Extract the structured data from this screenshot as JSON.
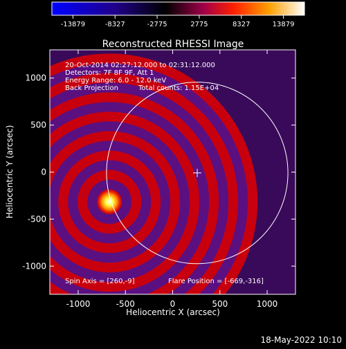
{
  "colorbar": {
    "ticks": [
      "-13879",
      "-8327",
      "-2775",
      "2775",
      "8327",
      "13879"
    ],
    "colors": [
      "#0000ff",
      "#000000",
      "#ff0000",
      "#ffff00",
      "#ffffff"
    ]
  },
  "chart_data": {
    "type": "heatmap",
    "title": "Reconstructed RHESSI Image",
    "xlabel": "Heliocentric X (arcsec)",
    "ylabel": "Heliocentric Y (arcsec)",
    "xlim": [
      -1300,
      1300
    ],
    "ylim": [
      -1300,
      1300
    ],
    "x_ticks": [
      -1000,
      -500,
      0,
      500,
      1000
    ],
    "y_ticks": [
      -1000,
      -500,
      0,
      500,
      1000
    ],
    "source": {
      "x": -669,
      "y": -316
    },
    "center_marker": {
      "x": 260,
      "y": -9
    },
    "limb_radius_arcsec": 960,
    "value_range": [
      -13879,
      13879
    ],
    "annotations": {
      "time": "20-Oct-2014 02:27:12.000 to 02:31:12.000",
      "detectors": "Detectors: 7F 8F 9F, Att 1",
      "energy": "Energy Range: 6.0 - 12.0 keV",
      "method": "Back Projection",
      "counts": "Total counts: 1.15E+04",
      "spin_axis": "Spin Axis = [260,-9]",
      "flare_position": "Flare Position = [-669,-316]"
    }
  },
  "footer": {
    "date": "18-May-2022 10:10"
  }
}
